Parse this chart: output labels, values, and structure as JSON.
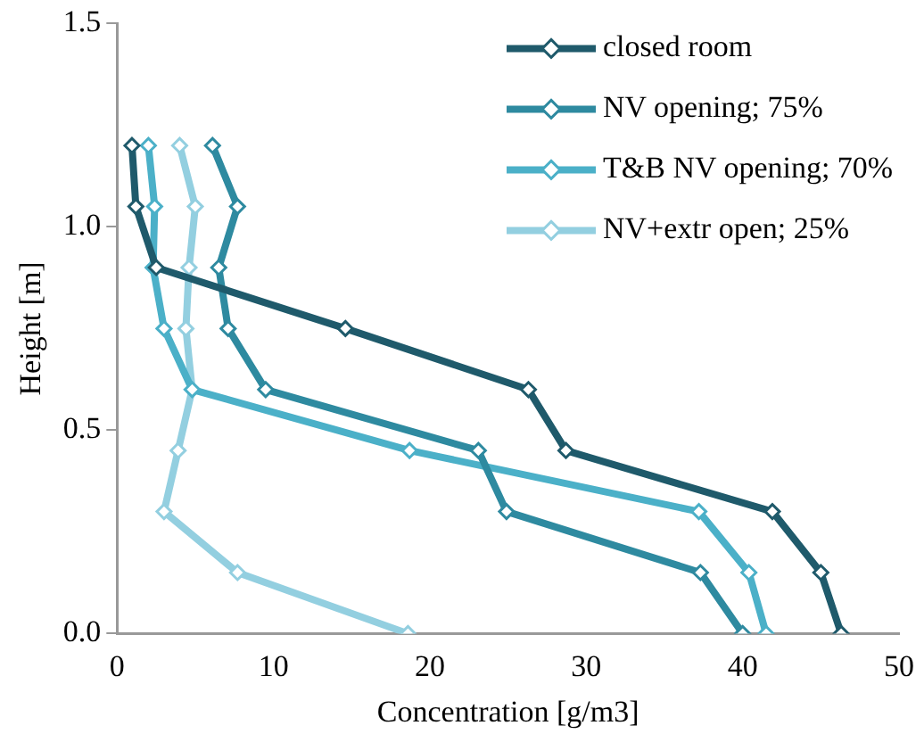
{
  "chart_data": {
    "type": "line",
    "xlabel": "Concentration [g/m3]",
    "ylabel": "Height [m]",
    "xlim": [
      0,
      50
    ],
    "xticks": [
      0,
      10,
      20,
      30,
      40,
      50
    ],
    "ylim": [
      0,
      1.5
    ],
    "yticks": [
      {
        "value": 0,
        "label": "0.0"
      },
      0.5,
      {
        "value": 1,
        "label": "1.0"
      },
      1.5
    ],
    "grid": false,
    "legend": "top right",
    "marker": "diamond",
    "line_style": "solid",
    "series": [
      {
        "name": "closed room",
        "color": "#1f5a6b",
        "x": [
          0.95,
          1.2,
          2.5,
          14.6,
          26.3,
          28.7,
          41.9,
          45.0,
          46.3
        ],
        "values": [
          1.2,
          1.05,
          0.9,
          0.75,
          0.6,
          0.45,
          0.3,
          0.15,
          0
        ]
      },
      {
        "name": "NV opening; 75%",
        "color": "#2e8aa0",
        "x": [
          6.1,
          7.7,
          6.5,
          7.1,
          9.5,
          23.1,
          24.9,
          37.3,
          40.0
        ],
        "values": [
          1.2,
          1.05,
          0.9,
          0.75,
          0.6,
          0.45,
          0.3,
          0.15,
          0
        ]
      },
      {
        "name": "T&B NV opening; 70%",
        "color": "#4bb0c8",
        "x": [
          2.0,
          2.4,
          2.3,
          3.0,
          4.8,
          18.7,
          37.2,
          40.4,
          41.5
        ],
        "values": [
          1.2,
          1.05,
          0.9,
          0.75,
          0.6,
          0.45,
          0.3,
          0.15,
          0
        ]
      },
      {
        "name": "NV+extr open; 25%",
        "color": "#93cfe0",
        "x": [
          4.0,
          5.0,
          4.6,
          4.4,
          4.8,
          3.9,
          3.0,
          7.7,
          18.6
        ],
        "values": [
          1.2,
          1.05,
          0.9,
          0.75,
          0.6,
          0.45,
          0.3,
          0.15,
          0
        ]
      }
    ]
  }
}
